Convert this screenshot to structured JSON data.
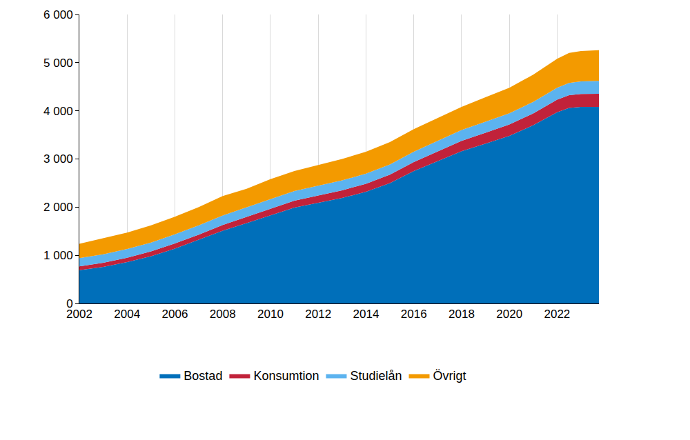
{
  "chart_data": {
    "type": "area",
    "stacked": true,
    "grid": "x",
    "legend": "bottom",
    "x": [
      2002,
      2003,
      2004,
      2005,
      2006,
      2007,
      2008,
      2009,
      2010,
      2011,
      2012,
      2013,
      2014,
      2015,
      2016,
      2017,
      2018,
      2019,
      2020,
      2021,
      2022,
      2022.5,
      2023,
      2023.75
    ],
    "xlim": [
      2002,
      2023.75
    ],
    "xticks": [
      2002,
      2004,
      2006,
      2008,
      2010,
      2012,
      2014,
      2016,
      2018,
      2020,
      2022
    ],
    "ylim": [
      0,
      6000
    ],
    "yticks": [
      0,
      {
        "value": 1000,
        "label": "1 000"
      },
      {
        "value": 2000,
        "label": "2 000"
      },
      {
        "value": 3000,
        "label": "3 000"
      },
      {
        "value": 4000,
        "label": "4 000"
      },
      {
        "value": 5000,
        "label": "5 000"
      },
      {
        "value": 6000,
        "label": "6 000"
      }
    ],
    "series": [
      {
        "name": "Bostad",
        "color": "#006fba",
        "values": [
          690,
          760,
          860,
          980,
          1140,
          1320,
          1510,
          1670,
          1830,
          1990,
          2090,
          2190,
          2320,
          2500,
          2750,
          2950,
          3160,
          3320,
          3480,
          3700,
          3970,
          4060,
          4080,
          4080
        ]
      },
      {
        "name": "Konsumtion",
        "color": "#c1223a",
        "values": [
          80,
          85,
          90,
          100,
          105,
          110,
          120,
          125,
          135,
          145,
          150,
          160,
          165,
          175,
          185,
          200,
          215,
          225,
          235,
          245,
          260,
          265,
          270,
          275
        ]
      },
      {
        "name": "Studielån",
        "color": "#5cb3ef",
        "values": [
          170,
          175,
          180,
          185,
          190,
          190,
          195,
          195,
          200,
          200,
          205,
          205,
          210,
          210,
          215,
          220,
          225,
          230,
          235,
          240,
          250,
          255,
          260,
          265
        ]
      },
      {
        "name": "Övrigt",
        "color": "#f39a00",
        "values": [
          300,
          340,
          340,
          355,
          365,
          380,
          405,
          390,
          415,
          415,
          435,
          445,
          455,
          465,
          470,
          480,
          480,
          505,
          530,
          565,
          600,
          620,
          630,
          640
        ]
      }
    ]
  }
}
